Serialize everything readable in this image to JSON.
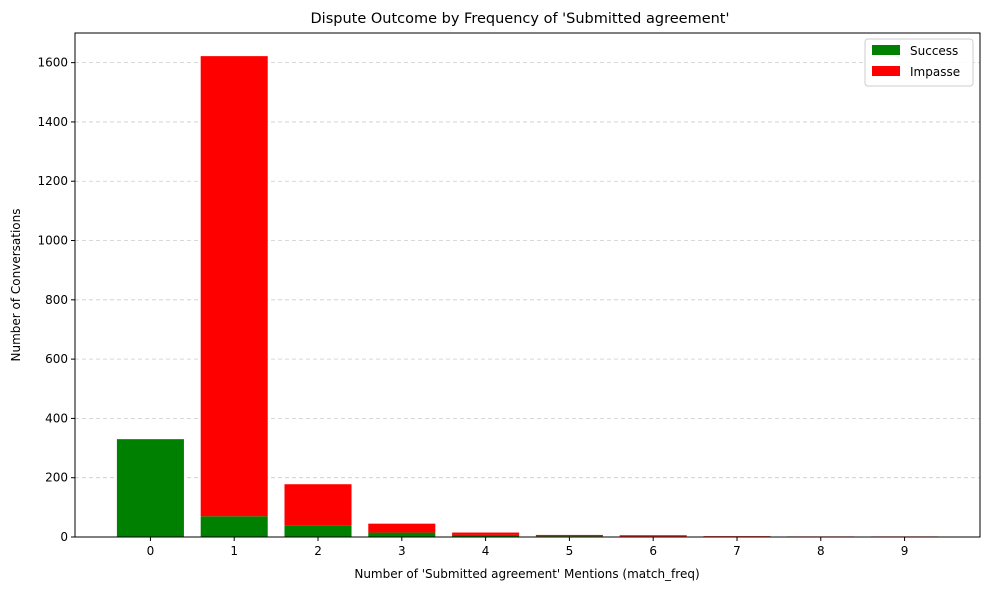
{
  "chart_data": {
    "type": "bar",
    "stacked": true,
    "title": "Dispute Outcome by Frequency of 'Submitted agreement'",
    "xlabel": "Number of 'Submitted agreement' Mentions (match_freq)",
    "ylabel": "Number of Conversations",
    "categories": [
      "0",
      "1",
      "2",
      "3",
      "4",
      "5",
      "6",
      "7",
      "8",
      "9"
    ],
    "series": [
      {
        "name": "Success",
        "color": "#008000",
        "values": [
          330,
          70,
          40,
          15,
          7,
          3,
          2,
          2,
          1,
          1
        ]
      },
      {
        "name": "Impasse",
        "color": "#ff0000",
        "values": [
          0,
          1552,
          138,
          30,
          8,
          4,
          4,
          1,
          1,
          1
        ]
      }
    ],
    "ylim": [
      0,
      1700
    ],
    "yticks": [
      "0",
      "200",
      "400",
      "600",
      "800",
      "1000",
      "1200",
      "1400",
      "1600"
    ],
    "grid": "y-dashed",
    "legend_position": "top-right"
  }
}
